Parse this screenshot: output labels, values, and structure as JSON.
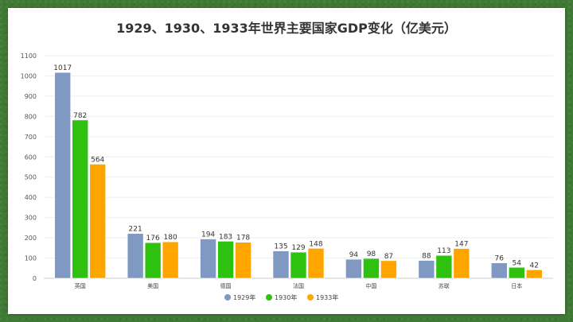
{
  "chart_data": {
    "type": "bar",
    "title": "1929、1930、1933年世界主要国家GDP变化（亿美元）",
    "categories": [
      "英国",
      "美国",
      "德国",
      "法国",
      "中国",
      "苏联",
      "日本"
    ],
    "series": [
      {
        "name": "1929年",
        "color": "#7f99c3",
        "values": [
          1017,
          221,
          194,
          135,
          94,
          88,
          76
        ]
      },
      {
        "name": "1930年",
        "color": "#2fc10f",
        "values": [
          782,
          176,
          183,
          129,
          98,
          113,
          54
        ]
      },
      {
        "name": "1933年",
        "color": "#ffa500",
        "values": [
          564,
          180,
          178,
          148,
          87,
          147,
          42
        ]
      }
    ],
    "y_ticks": [
      0,
      100,
      200,
      300,
      400,
      500,
      600,
      700,
      800,
      900,
      1000,
      1100
    ],
    "ylim": [
      0,
      1100
    ],
    "legend_position": "bottom",
    "grid": true
  }
}
